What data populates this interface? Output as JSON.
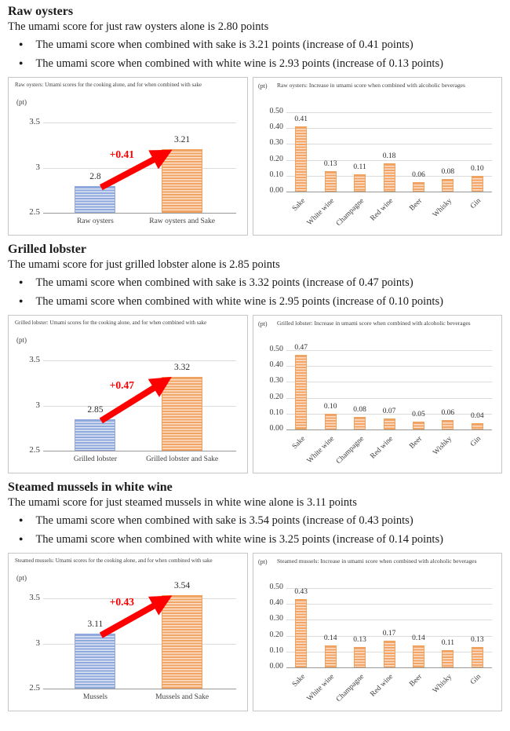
{
  "ui": {
    "bullet_glyph": "●"
  },
  "colors": {
    "blue_bar": "#8fa9dc",
    "orange_bar": "#f2a465",
    "arrow_red": "#ff0000",
    "grid": "#dcdcdc",
    "axis": "#999999",
    "box_border": "#c6c6c6",
    "text": "#1b1b1b"
  },
  "sections": [
    {
      "heading": "Raw oysters",
      "intro": "The umami score for just raw oysters alone is 2.80 points",
      "bullets": [
        "The umami score when combined with sake is 3.21 points (increase of 0.41 points)",
        "The umami score when combined with white wine is 2.93 points (increase of 0.13 points)"
      ]
    },
    {
      "heading": "Grilled lobster",
      "intro": "The umami score for just grilled lobster alone is 2.85 points",
      "bullets": [
        "The umami score when combined with sake is 3.32 points (increase of 0.47 points)",
        "The umami score when combined with white wine is 2.95 points (increase of 0.10 points)"
      ]
    },
    {
      "heading": "Steamed mussels in white wine",
      "intro": "The umami score for just steamed mussels in white wine alone is 3.11 points",
      "bullets": [
        "The umami score when combined with sake is 3.54 points (increase of 0.43 points)",
        "The umami score when combined with white wine is 3.25 points (increase of 0.14 points)"
      ]
    }
  ],
  "chart_data": [
    {
      "type": "bar",
      "kind": "pair",
      "title": "Raw oysters: Umami scores for the cooking alone, and for when combined with sake",
      "unit": "(pt)",
      "ylabel": "(pt)",
      "xlabel": "",
      "categories": [
        "Raw oysters",
        "Raw oysters and Sake"
      ],
      "values": [
        2.8,
        3.21
      ],
      "value_labels": [
        "2.8",
        "3.21"
      ],
      "series_colors": [
        "blue",
        "orange"
      ],
      "annotation": "+0.41",
      "ylim": [
        2.5,
        3.6
      ],
      "yticks": [
        {
          "v": 3.5,
          "label": "3.5"
        },
        {
          "v": 3.0,
          "label": "3"
        },
        {
          "v": 2.5,
          "label": "2.5"
        }
      ],
      "grid": true,
      "legend": "none"
    },
    {
      "type": "bar",
      "kind": "increase",
      "title": "Raw oysters: Increase in umami score when combined with alcoholic beverages",
      "unit": "(pt)",
      "ylabel": "(pt)",
      "xlabel": "",
      "categories": [
        "Sake",
        "White wine",
        "Champagne",
        "Red wine",
        "Beer",
        "Whisky",
        "Gin"
      ],
      "values": [
        0.41,
        0.13,
        0.11,
        0.18,
        0.06,
        0.08,
        0.1
      ],
      "value_labels": [
        "0.41",
        "0.13",
        "0.11",
        "0.18",
        "0.06",
        "0.08",
        "0.10"
      ],
      "ylim": [
        0,
        0.55
      ],
      "yticks": [
        {
          "v": 0.5,
          "label": "0.50"
        },
        {
          "v": 0.4,
          "label": "0.40"
        },
        {
          "v": 0.3,
          "label": "0.30"
        },
        {
          "v": 0.2,
          "label": "0.20"
        },
        {
          "v": 0.1,
          "label": "0.10"
        },
        {
          "v": 0,
          "label": "0.00"
        }
      ],
      "grid": true,
      "legend": "none"
    },
    {
      "type": "bar",
      "kind": "pair",
      "title": "Grilled lobster: Umami scores for the cooking alone, and for when combined with sake",
      "unit": "(pt)",
      "ylabel": "(pt)",
      "xlabel": "",
      "categories": [
        "Grilled lobster",
        "Grilled lobster and Sake"
      ],
      "values": [
        2.85,
        3.32
      ],
      "value_labels": [
        "2.85",
        "3.32"
      ],
      "series_colors": [
        "blue",
        "orange"
      ],
      "annotation": "+0.47",
      "ylim": [
        2.5,
        3.6
      ],
      "yticks": [
        {
          "v": 3.5,
          "label": "3.5"
        },
        {
          "v": 3.0,
          "label": "3"
        },
        {
          "v": 2.5,
          "label": "2.5"
        }
      ],
      "grid": true,
      "legend": "none"
    },
    {
      "type": "bar",
      "kind": "increase",
      "title": "Grilled lobster: Increase in umami score when combined with alcoholic beverages",
      "unit": "(pt)",
      "ylabel": "(pt)",
      "xlabel": "",
      "categories": [
        "Sake",
        "White wine",
        "Champagne",
        "Red wine",
        "Beer",
        "Wishky",
        "Gin"
      ],
      "values": [
        0.47,
        0.1,
        0.08,
        0.07,
        0.05,
        0.06,
        0.04
      ],
      "value_labels": [
        "0.47",
        "0.10",
        "0.08",
        "0.07",
        "0.05",
        "0.06",
        "0.04"
      ],
      "ylim": [
        0,
        0.55
      ],
      "yticks": [
        {
          "v": 0.5,
          "label": "0.50"
        },
        {
          "v": 0.4,
          "label": "0.40"
        },
        {
          "v": 0.3,
          "label": "0.30"
        },
        {
          "v": 0.2,
          "label": "0.20"
        },
        {
          "v": 0.1,
          "label": "0.10"
        },
        {
          "v": 0,
          "label": "0.00"
        }
      ],
      "grid": true,
      "legend": "none"
    },
    {
      "type": "bar",
      "kind": "pair",
      "title": "Steamed mussels: Umami scores for the cooking alone, and for when combined with sake",
      "unit": "(pt)",
      "ylabel": "(pt)",
      "xlabel": "",
      "categories": [
        "Mussels",
        "Mussels and Sake"
      ],
      "values": [
        3.11,
        3.54
      ],
      "value_labels": [
        "3.11",
        "3.54"
      ],
      "series_colors": [
        "blue",
        "orange"
      ],
      "annotation": "+0.43",
      "ylim": [
        2.5,
        3.6
      ],
      "yticks": [
        {
          "v": 3.5,
          "label": "3.5"
        },
        {
          "v": 3.0,
          "label": "3"
        },
        {
          "v": 2.5,
          "label": "2.5"
        }
      ],
      "grid": true,
      "legend": "none"
    },
    {
      "type": "bar",
      "kind": "increase",
      "title": "Steamed mussels: Increase in umami score when combined with alcoholic beverages",
      "unit": "(pt)",
      "ylabel": "(pt)",
      "xlabel": "",
      "categories": [
        "Sake",
        "White wine",
        "Champagne",
        "Red wine",
        "Beer",
        "Whisky",
        "Gin"
      ],
      "values": [
        0.43,
        0.14,
        0.13,
        0.17,
        0.14,
        0.11,
        0.13
      ],
      "value_labels": [
        "0.43",
        "0.14",
        "0.13",
        "0.17",
        "0.14",
        "0.11",
        "0.13"
      ],
      "ylim": [
        0,
        0.55
      ],
      "yticks": [
        {
          "v": 0.5,
          "label": "0.50"
        },
        {
          "v": 0.4,
          "label": "0.40"
        },
        {
          "v": 0.3,
          "label": "0.30"
        },
        {
          "v": 0.2,
          "label": "0.20"
        },
        {
          "v": 0.1,
          "label": "0.10"
        },
        {
          "v": 0,
          "label": "0.00"
        }
      ],
      "grid": true,
      "legend": "none"
    }
  ]
}
